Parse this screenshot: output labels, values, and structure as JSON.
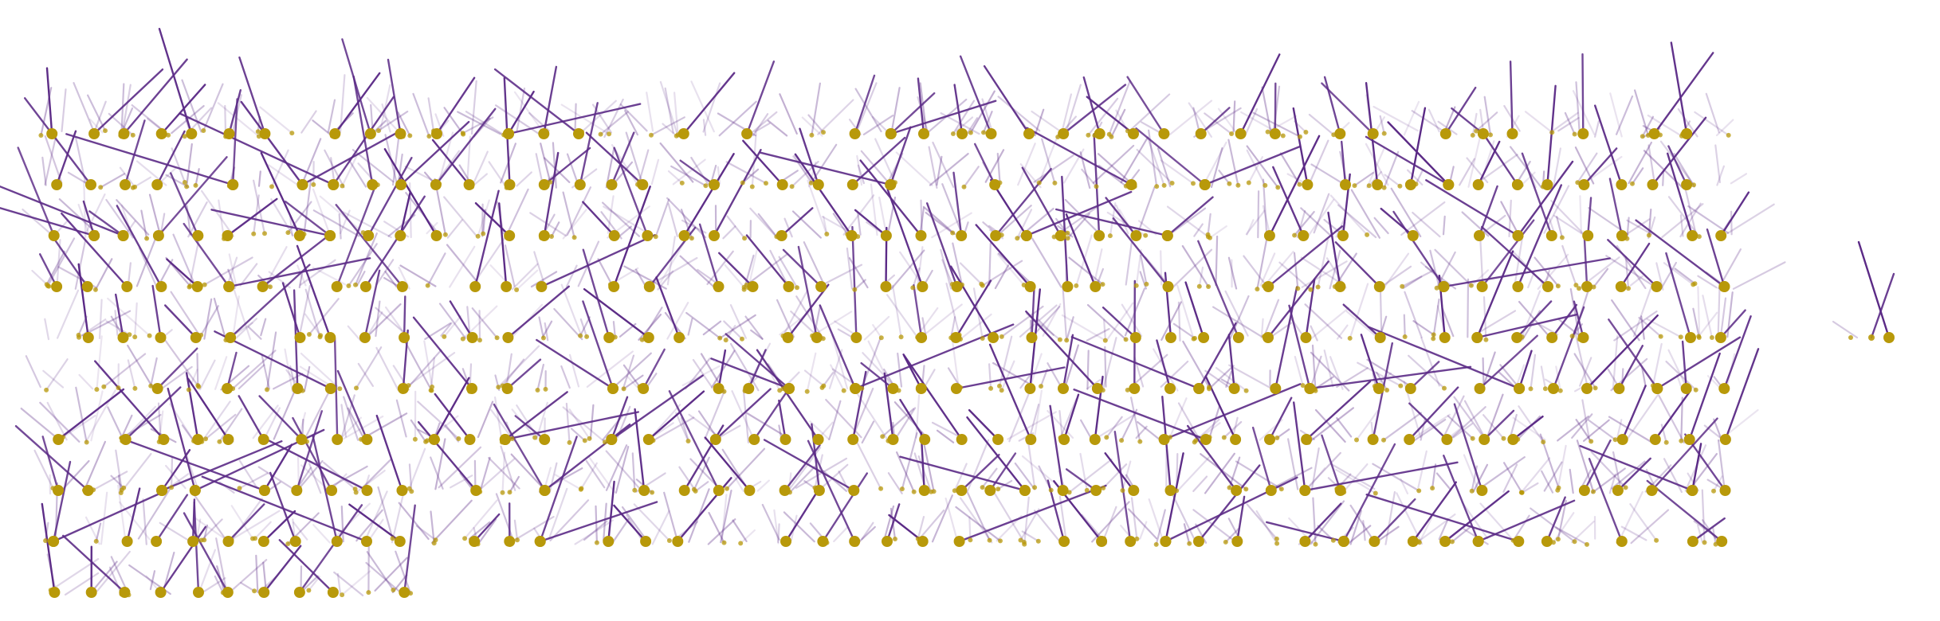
{
  "colors": {
    "background": "#ffffff",
    "stroke": "#5b2a86",
    "dot": "#b8990a"
  },
  "graphic": {
    "description_free": true,
    "row_count": 10,
    "column_count": 49,
    "lollipop_density": "high"
  }
}
